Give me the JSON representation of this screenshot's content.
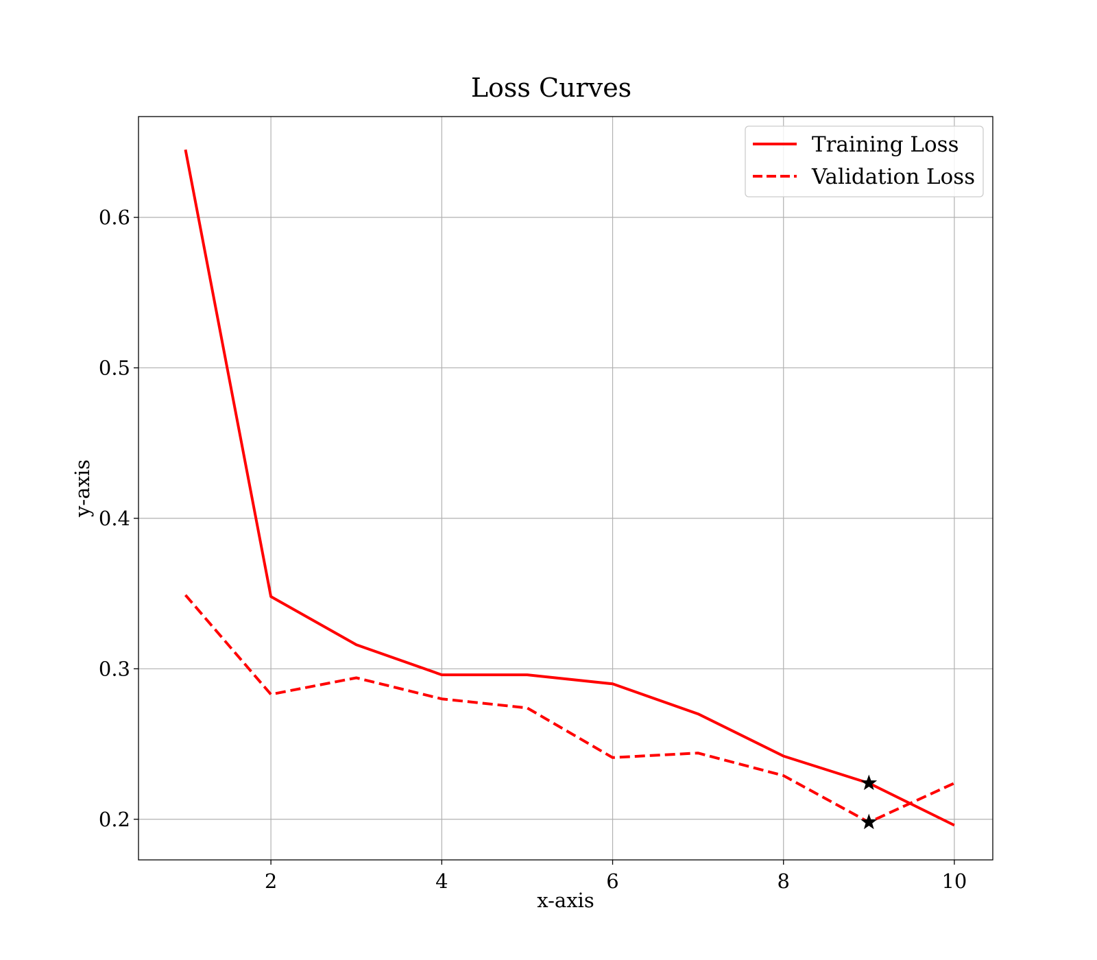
{
  "chart_data": {
    "type": "line",
    "title": "Loss Curves",
    "xlabel": "x-axis",
    "ylabel": "y-axis",
    "xlim": [
      0.45,
      10.45
    ],
    "ylim": [
      0.173,
      0.667
    ],
    "xticks": [
      2,
      4,
      6,
      8,
      10
    ],
    "yticks": [
      0.2,
      0.3,
      0.4,
      0.5,
      0.6
    ],
    "xtick_labels": [
      "2",
      "4",
      "6",
      "8",
      "10"
    ],
    "ytick_labels": [
      "0.2",
      "0.3",
      "0.4",
      "0.5",
      "0.6"
    ],
    "grid": true,
    "legend_position": "top-right",
    "x": [
      1,
      2,
      3,
      4,
      5,
      6,
      7,
      8,
      9,
      10
    ],
    "series": [
      {
        "name": "Training Loss",
        "values": [
          0.645,
          0.348,
          0.316,
          0.296,
          0.296,
          0.29,
          0.27,
          0.242,
          0.224,
          0.196
        ],
        "color": "#ff0000",
        "style": "solid"
      },
      {
        "name": "Validation Loss",
        "values": [
          0.349,
          0.283,
          0.294,
          0.28,
          0.274,
          0.241,
          0.244,
          0.229,
          0.198,
          0.224
        ],
        "color": "#ff0000",
        "style": "dashed"
      }
    ],
    "markers": [
      {
        "series": "Training Loss",
        "x": 9,
        "y": 0.224,
        "symbol": "star",
        "color": "#000000"
      },
      {
        "series": "Validation Loss",
        "x": 9,
        "y": 0.198,
        "symbol": "star",
        "color": "#000000"
      }
    ]
  }
}
